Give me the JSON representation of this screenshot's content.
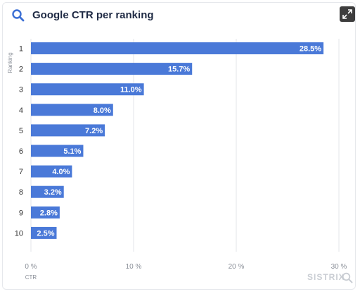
{
  "header": {
    "title": "Google CTR per ranking",
    "search_icon": "search-icon",
    "expand_icon": "expand-icon"
  },
  "brand": {
    "name": "SISTRIX",
    "icon": "magnifier-icon"
  },
  "colors": {
    "bar": "#4a79d8",
    "title": "#1f2a44",
    "grid": "#e3e5e8"
  },
  "chart_data": {
    "type": "bar",
    "orientation": "horizontal",
    "title": "Google CTR per ranking",
    "xlabel": "CTR",
    "ylabel": "Ranking",
    "categories": [
      "1",
      "2",
      "3",
      "4",
      "5",
      "6",
      "7",
      "8",
      "9",
      "10"
    ],
    "values": [
      28.5,
      15.7,
      11.0,
      8.0,
      7.2,
      5.1,
      4.0,
      3.2,
      2.8,
      2.5
    ],
    "value_labels": [
      "28.5%",
      "15.7%",
      "11.0%",
      "8.0%",
      "7.2%",
      "5.1%",
      "4.0%",
      "3.2%",
      "2.8%",
      "2.5%"
    ],
    "xlim": [
      0,
      30
    ],
    "xticks": [
      0,
      10,
      20,
      30
    ],
    "xtick_labels": [
      "0 %",
      "10 %",
      "20 %",
      "30 %"
    ],
    "grid": true
  }
}
